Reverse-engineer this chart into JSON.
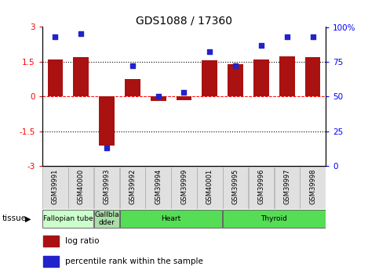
{
  "title": "GDS1088 / 17360",
  "samples": [
    "GSM39991",
    "GSM40000",
    "GSM39993",
    "GSM39992",
    "GSM39994",
    "GSM39999",
    "GSM40001",
    "GSM39995",
    "GSM39996",
    "GSM39997",
    "GSM39998"
  ],
  "log_ratio": [
    1.6,
    1.7,
    -2.1,
    0.75,
    -0.2,
    -0.15,
    1.55,
    1.4,
    1.6,
    1.75,
    1.7
  ],
  "percentile": [
    93,
    95,
    13,
    72,
    50,
    53,
    82,
    72,
    87,
    93,
    93
  ],
  "tissues": [
    {
      "label": "Fallopian tube",
      "start": 0,
      "end": 2,
      "color": "#ccffcc"
    },
    {
      "label": "Gallbla\ndder",
      "start": 2,
      "end": 3,
      "color": "#aaddaa"
    },
    {
      "label": "Heart",
      "start": 3,
      "end": 7,
      "color": "#55dd55"
    },
    {
      "label": "Thyroid",
      "start": 7,
      "end": 11,
      "color": "#55dd55"
    }
  ],
  "bar_color": "#aa1111",
  "dot_color": "#2222cc",
  "ylim": [
    -3,
    3
  ],
  "y2lim": [
    0,
    100
  ],
  "yticks_left": [
    -3,
    -1.5,
    0,
    1.5,
    3
  ],
  "yticks_right": [
    0,
    25,
    50,
    75,
    100
  ],
  "tissue_label": "tissue",
  "legend_bar_label": "log ratio",
  "legend_dot_label": "percentile rank within the sample",
  "background_color": "#ffffff"
}
